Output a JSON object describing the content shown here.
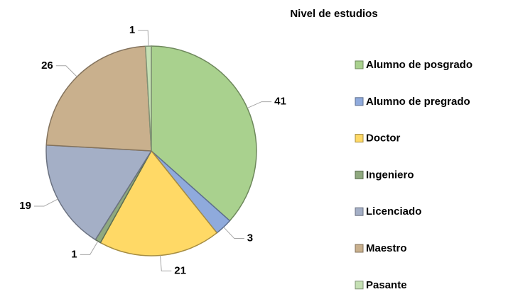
{
  "chart_data": {
    "type": "pie",
    "title": "Nivel de estudios",
    "categories": [
      "Alumno de posgrado",
      "Alumno de pregrado",
      "Doctor",
      "Ingeniero",
      "Licenciado",
      "Maestro",
      "Pasante"
    ],
    "values": [
      41,
      3,
      21,
      1,
      19,
      26,
      1
    ],
    "colors": [
      "#a9d18e",
      "#8faadc",
      "#ffd966",
      "#8fa97f",
      "#a4afc6",
      "#c9b08d",
      "#c5e0b4"
    ],
    "legend": "right"
  }
}
